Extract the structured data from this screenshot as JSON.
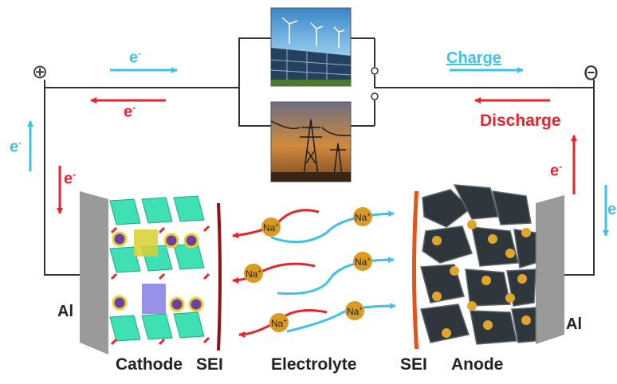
{
  "symbols": {
    "positive": "⊕",
    "negative": "Θ"
  },
  "electron": {
    "base": "e",
    "sup": "-"
  },
  "ion": {
    "base": "Na",
    "sup": "+"
  },
  "labels": {
    "charge": "Charge",
    "discharge": "Discharge",
    "al_left": "Al",
    "al_right": "Al",
    "cathode": "Cathode",
    "sei_cathode": "SEI",
    "electrolyte": "Electrolyte",
    "sei_anode": "SEI",
    "anode": "Anode"
  },
  "images": [
    "solar-and-wind-icon",
    "power-grid-icon"
  ],
  "colors": {
    "charge": "#3ec3e6",
    "discharge": "#e8232d",
    "wire": "#333333",
    "collector": "#9a9a9a",
    "sei_cathode": "#8a1414",
    "sei_anode": "#e2541a",
    "ion": "#d99a26",
    "anode_particle": "#2f373c",
    "cathode_layer": "#3fe0b4"
  }
}
